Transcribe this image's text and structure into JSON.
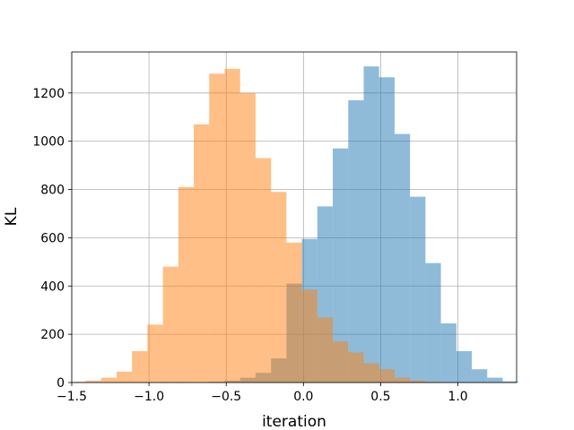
{
  "chart_data": {
    "type": "bar",
    "subtype": "overlapping-histogram",
    "xlabel": "iteration",
    "ylabel": "KL",
    "xlim": [
      -1.5,
      1.38
    ],
    "ylim": [
      0,
      1370
    ],
    "grid": true,
    "x_ticks": [
      -1.5,
      -1.0,
      -0.5,
      0.0,
      0.5,
      1.0
    ],
    "x_tick_labels": [
      "−1.5",
      "−1.0",
      "−0.5",
      "0.0",
      "0.5",
      "1.0"
    ],
    "y_ticks": [
      0,
      200,
      400,
      600,
      800,
      1000,
      1200
    ],
    "y_tick_labels": [
      "0",
      "200",
      "400",
      "600",
      "800",
      "1000",
      "1200"
    ],
    "series": [
      {
        "color": "#1f77b4",
        "opacity": 0.5,
        "bins": [
          [
            -0.61,
            -0.51,
            3
          ],
          [
            -0.51,
            -0.41,
            8
          ],
          [
            -0.41,
            -0.31,
            20
          ],
          [
            -0.31,
            -0.21,
            40
          ],
          [
            -0.21,
            -0.11,
            100
          ],
          [
            -0.11,
            -0.01,
            410
          ],
          [
            -0.01,
            0.09,
            595
          ],
          [
            0.09,
            0.19,
            730
          ],
          [
            0.19,
            0.29,
            970
          ],
          [
            0.29,
            0.39,
            1170
          ],
          [
            0.39,
            0.49,
            1310
          ],
          [
            0.49,
            0.59,
            1265
          ],
          [
            0.59,
            0.69,
            1030
          ],
          [
            0.69,
            0.79,
            770
          ],
          [
            0.79,
            0.89,
            495
          ],
          [
            0.89,
            0.99,
            245
          ],
          [
            0.99,
            1.09,
            130
          ],
          [
            1.09,
            1.19,
            55
          ],
          [
            1.19,
            1.29,
            20
          ],
          [
            1.29,
            1.39,
            5
          ]
        ]
      },
      {
        "color": "#ff7f0e",
        "opacity": 0.5,
        "bins": [
          [
            -1.49,
            -1.41,
            3
          ],
          [
            -1.41,
            -1.31,
            8
          ],
          [
            -1.31,
            -1.21,
            20
          ],
          [
            -1.21,
            -1.11,
            45
          ],
          [
            -1.11,
            -1.01,
            130
          ],
          [
            -1.01,
            -0.91,
            240
          ],
          [
            -0.91,
            -0.81,
            480
          ],
          [
            -0.81,
            -0.71,
            810
          ],
          [
            -0.71,
            -0.61,
            1070
          ],
          [
            -0.61,
            -0.51,
            1280
          ],
          [
            -0.51,
            -0.41,
            1300
          ],
          [
            -0.41,
            -0.31,
            1200
          ],
          [
            -0.31,
            -0.21,
            930
          ],
          [
            -0.21,
            -0.11,
            790
          ],
          [
            -0.11,
            -0.01,
            580
          ],
          [
            -0.01,
            0.09,
            385
          ],
          [
            0.09,
            0.19,
            270
          ],
          [
            0.19,
            0.29,
            170
          ],
          [
            0.29,
            0.39,
            125
          ],
          [
            0.39,
            0.49,
            80
          ],
          [
            0.49,
            0.59,
            55
          ],
          [
            0.59,
            0.69,
            20
          ],
          [
            0.69,
            0.79,
            8
          ],
          [
            0.79,
            0.89,
            3
          ]
        ]
      }
    ]
  }
}
